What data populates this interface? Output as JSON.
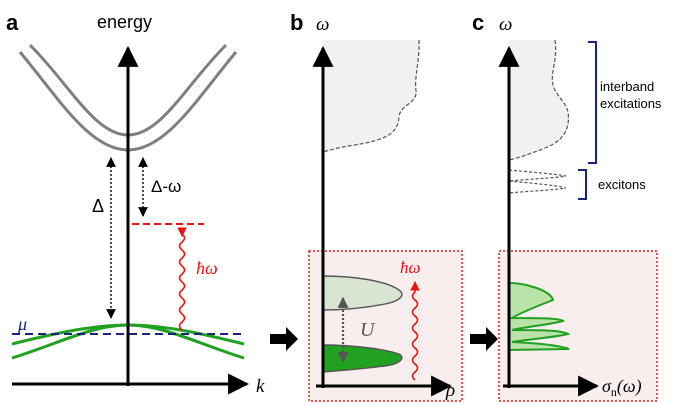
{
  "panels": {
    "a": {
      "letter": "a",
      "y_axis_label": "energy",
      "x_axis_label": "k",
      "gap_label": "Δ",
      "detuning_label": "Δ-ω",
      "photon_label": "ħω",
      "chem_pot_label": "μ"
    },
    "b": {
      "letter": "b",
      "y_axis_label": "ω",
      "x_axis_label": "ρ",
      "interaction_label": "U",
      "photon_label": "ħω"
    },
    "c": {
      "letter": "c",
      "y_axis_label": "ω",
      "x_axis_label_main": "σ",
      "x_axis_label_sub": "n",
      "x_axis_label_tail": "(ω)",
      "bracket_interband_line1": "interband",
      "bracket_interband_line2": "excitations",
      "bracket_excitons": "excitons"
    }
  },
  "colors": {
    "band": "#7f7f7f",
    "valence": "#22a022",
    "photon": "#ee1111",
    "chem_pot": "#1a237e",
    "bracket": "#1a237e",
    "inset_fill": "#f9eeee",
    "inset_border": "#dd2222",
    "spectrum_fill": "#f1f1f1",
    "axis": "#000000"
  }
}
